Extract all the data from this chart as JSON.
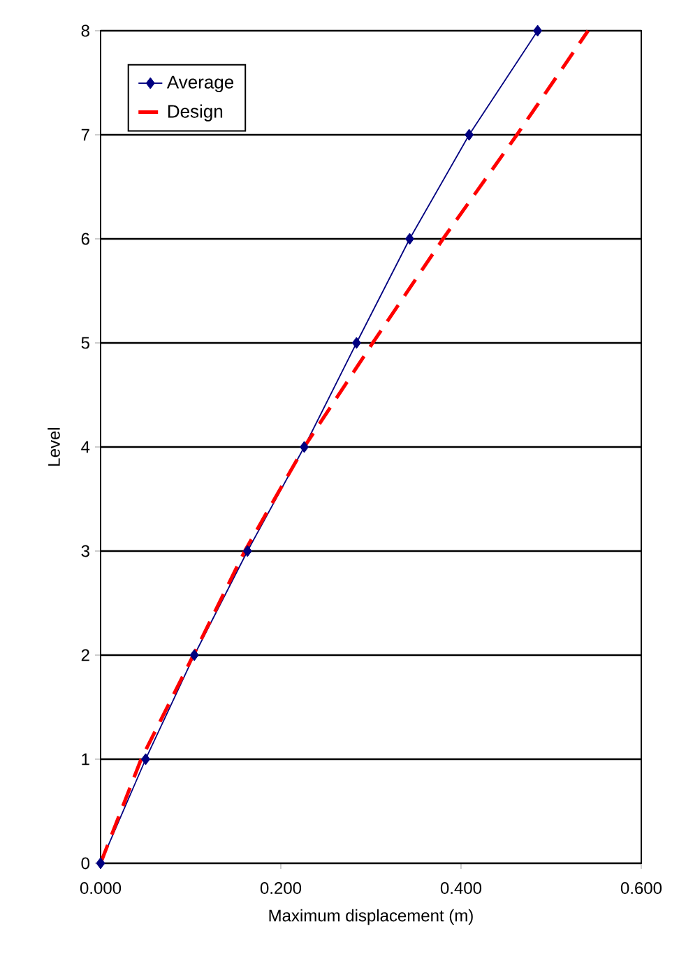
{
  "chart_data": {
    "type": "line",
    "xlabel": "Maximum displacement (m)",
    "ylabel": "Level",
    "xlim": [
      0,
      0.6
    ],
    "ylim": [
      0,
      8
    ],
    "xticks": [
      {
        "value": 0,
        "label": "0.000"
      },
      {
        "value": 0.2,
        "label": "0.200"
      },
      {
        "value": 0.4,
        "label": "0.400"
      },
      {
        "value": 0.6,
        "label": "0.600"
      }
    ],
    "yticks": [
      0,
      1,
      2,
      3,
      4,
      5,
      6,
      7,
      8
    ],
    "grid": "y",
    "legend": "top left",
    "series": [
      {
        "name": "Average",
        "color": "#000080",
        "marker": "diamond",
        "line_style": "solid",
        "x": [
          0,
          0.05,
          0.104,
          0.163,
          0.226,
          0.284,
          0.343,
          0.409,
          0.485
        ],
        "values": [
          0,
          1,
          2,
          3,
          4,
          5,
          6,
          7,
          8
        ]
      },
      {
        "name": "Design",
        "color": "#ff0000",
        "marker": "none",
        "line_style": "dashed",
        "x": [
          0,
          0.045,
          0.103,
          0.16,
          0.226,
          0.302,
          0.38,
          0.462,
          0.541
        ],
        "values": [
          0,
          1,
          2,
          3,
          4,
          5,
          6,
          7,
          8
        ]
      }
    ]
  }
}
